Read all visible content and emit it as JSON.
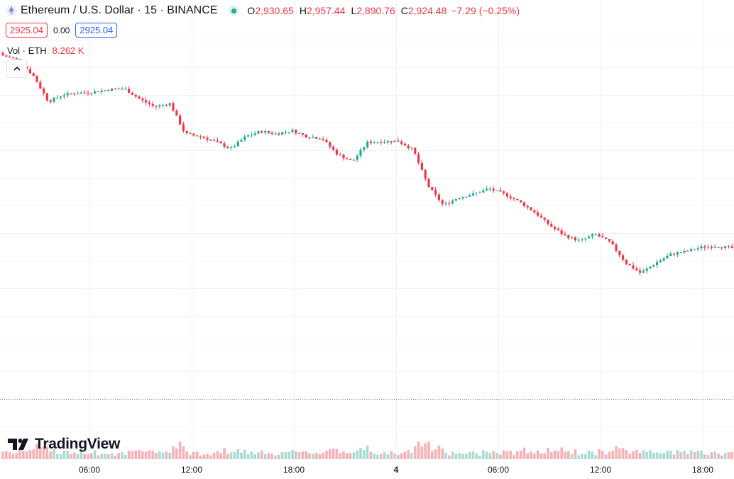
{
  "header": {
    "symbol_title": "Ethereum / U.S. Dollar · 15 · BINANCE",
    "open_label": "O",
    "open_value": "2,930.65",
    "high_label": "H",
    "high_value": "2,957.44",
    "low_label": "L",
    "low_value": "2,890.76",
    "close_label": "C",
    "close_value": "2,924.48",
    "change": "−7.29",
    "change_pct": "(−0.25%)",
    "sell_price": "2925.04",
    "spread": "0.00",
    "buy_price": "2925.04"
  },
  "volume_legend": {
    "label": "Vol · ETH",
    "value": "8.262 K"
  },
  "branding": {
    "logo_text": "TradingView"
  },
  "colors": {
    "up": "#22ab94",
    "down": "#f23645",
    "grid": "#f0f3fa",
    "text": "#131722"
  },
  "chart_data": {
    "type": "candlestick",
    "title": "Ethereum / U.S. Dollar · 15 · BINANCE",
    "interval": "15",
    "x_tick_labels": [
      "06:00",
      "12:00",
      "18:00",
      "4",
      "06:00",
      "12:00",
      "18:00"
    ],
    "grid": true,
    "volume_pane": true,
    "close_series_by_time": [
      {
        "t": "01:00",
        "close": 3035
      },
      {
        "t": "01:30",
        "close": 3030
      },
      {
        "t": "02:00",
        "close": 3012
      },
      {
        "t": "02:30",
        "close": 2982
      },
      {
        "t": "03:00",
        "close": 2990
      },
      {
        "t": "04:00",
        "close": 2992
      },
      {
        "t": "05:00",
        "close": 2993
      },
      {
        "t": "06:00",
        "close": 2996
      },
      {
        "t": "07:00",
        "close": 2997
      },
      {
        "t": "08:00",
        "close": 2985
      },
      {
        "t": "09:00",
        "close": 2976
      },
      {
        "t": "10:00",
        "close": 2980
      },
      {
        "t": "10:30",
        "close": 2945
      },
      {
        "t": "11:00",
        "close": 2942
      },
      {
        "t": "12:00",
        "close": 2936
      },
      {
        "t": "13:00",
        "close": 2928
      },
      {
        "t": "14:00",
        "close": 2942
      },
      {
        "t": "15:00",
        "close": 2948
      },
      {
        "t": "16:00",
        "close": 2945
      },
      {
        "t": "17:00",
        "close": 2949
      },
      {
        "t": "18:00",
        "close": 2942
      },
      {
        "t": "19:00",
        "close": 2940
      },
      {
        "t": "20:00",
        "close": 2922
      },
      {
        "t": "21:00",
        "close": 2913
      },
      {
        "t": "22:00",
        "close": 2935
      },
      {
        "t": "23:00",
        "close": 2936
      },
      {
        "t": "00:00",
        "close": 2937
      },
      {
        "t": "00:30",
        "close": 2927
      },
      {
        "t": "01:00",
        "close": 2885
      },
      {
        "t": "01:30",
        "close": 2863
      },
      {
        "t": "02:00",
        "close": 2872
      },
      {
        "t": "03:00",
        "close": 2876
      },
      {
        "t": "04:00",
        "close": 2882
      },
      {
        "t": "05:00",
        "close": 2876
      },
      {
        "t": "06:00",
        "close": 2867
      },
      {
        "t": "07:00",
        "close": 2855
      },
      {
        "t": "08:00",
        "close": 2840
      },
      {
        "t": "09:00",
        "close": 2828
      },
      {
        "t": "10:00",
        "close": 2822
      },
      {
        "t": "11:00",
        "close": 2830
      },
      {
        "t": "12:00",
        "close": 2820
      },
      {
        "t": "13:00",
        "close": 2797
      },
      {
        "t": "13:30",
        "close": 2785
      },
      {
        "t": "14:00",
        "close": 2797
      },
      {
        "t": "15:00",
        "close": 2807
      },
      {
        "t": "16:00",
        "close": 2810
      },
      {
        "t": "17:00",
        "close": 2815
      },
      {
        "t": "18:00",
        "close": 2816
      },
      {
        "t": "19:00",
        "close": 2814
      }
    ]
  }
}
